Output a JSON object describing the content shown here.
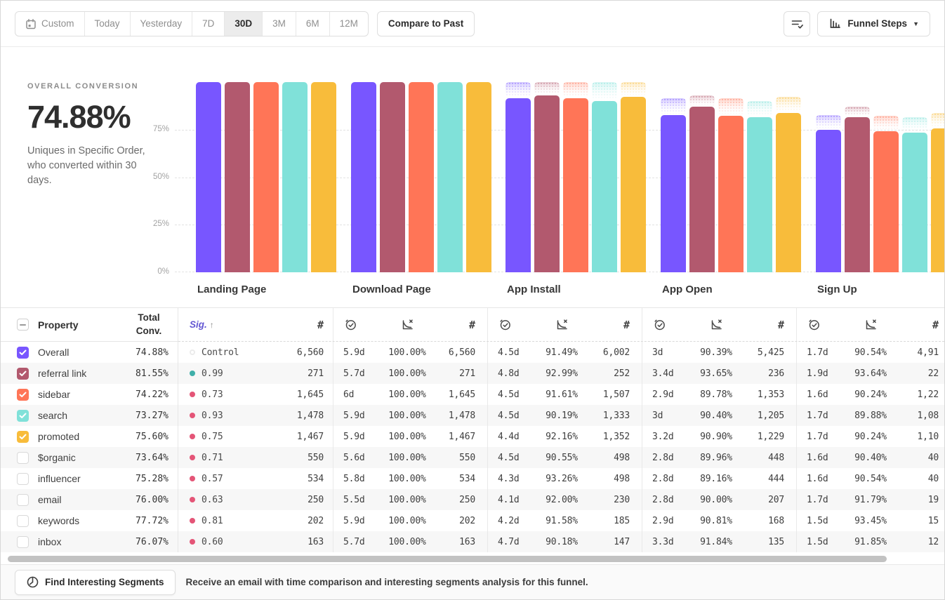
{
  "toolbar": {
    "date_ranges": [
      "Custom",
      "Today",
      "Yesterday",
      "7D",
      "30D",
      "3M",
      "6M",
      "12M"
    ],
    "active_range": "30D",
    "compare_label": "Compare to Past",
    "view_selector_label": "Funnel Steps"
  },
  "overview": {
    "label": "OVERALL CONVERSION",
    "value": "74.88%",
    "description": "Uniques in Specific Order, who converted within 30 days."
  },
  "chart_data": {
    "type": "bar",
    "categories": [
      "Landing Page",
      "Download Page",
      "App Install",
      "App Open",
      "Sign Up"
    ],
    "y_ticks": [
      "75%",
      "50%",
      "25%",
      "0%"
    ],
    "ylim": [
      0,
      100
    ],
    "grid": "dashed-horizontal",
    "legend_position": "none",
    "series": [
      {
        "name": "Overall",
        "color": "#7856FF",
        "cumulative_pct": [
          100,
          100,
          91.49,
          82.7,
          74.88
        ]
      },
      {
        "name": "referral link",
        "color": "#B2596E",
        "cumulative_pct": [
          100,
          100,
          92.99,
          87.08,
          81.55
        ]
      },
      {
        "name": "sidebar",
        "color": "#FF7557",
        "cumulative_pct": [
          100,
          100,
          91.61,
          82.25,
          74.22
        ]
      },
      {
        "name": "search",
        "color": "#80E1D9",
        "cumulative_pct": [
          100,
          100,
          90.19,
          81.53,
          73.27
        ]
      },
      {
        "name": "promoted",
        "color": "#F8BC3B",
        "cumulative_pct": [
          100,
          100,
          92.16,
          83.77,
          75.6
        ]
      }
    ]
  },
  "table": {
    "header": {
      "property": "Property",
      "total": "Total Conv.",
      "sig": "Sig.",
      "sort_arrow": "↑",
      "count_symbol": "#"
    },
    "step_metric_icons": [
      "stopwatch-icon",
      "conversion-chart-icon",
      "count-hash"
    ],
    "rows": [
      {
        "property": "Overall",
        "total": "74.88%",
        "checked": true,
        "color": "#7856FF",
        "sig": {
          "type": "control",
          "value": "Control"
        },
        "entry_count": "6,560",
        "steps": [
          {
            "time": "5.9d",
            "rate": "100.00%",
            "count": "6,560"
          },
          {
            "time": "4.5d",
            "rate": "91.49%",
            "count": "6,002"
          },
          {
            "time": "3d",
            "rate": "90.39%",
            "count": "5,425"
          },
          {
            "time": "1.7d",
            "rate": "90.54%",
            "count": "4,91"
          }
        ]
      },
      {
        "property": "referral link",
        "total": "81.55%",
        "checked": true,
        "color": "#B2596E",
        "sig": {
          "type": "positive",
          "value": "0.99"
        },
        "entry_count": "271",
        "steps": [
          {
            "time": "5.7d",
            "rate": "100.00%",
            "count": "271"
          },
          {
            "time": "4.8d",
            "rate": "92.99%",
            "count": "252"
          },
          {
            "time": "3.4d",
            "rate": "93.65%",
            "count": "236"
          },
          {
            "time": "1.9d",
            "rate": "93.64%",
            "count": "22"
          }
        ]
      },
      {
        "property": "sidebar",
        "total": "74.22%",
        "checked": true,
        "color": "#FF7557",
        "sig": {
          "type": "negative",
          "value": "0.73"
        },
        "entry_count": "1,645",
        "steps": [
          {
            "time": "6d",
            "rate": "100.00%",
            "count": "1,645"
          },
          {
            "time": "4.5d",
            "rate": "91.61%",
            "count": "1,507"
          },
          {
            "time": "2.9d",
            "rate": "89.78%",
            "count": "1,353"
          },
          {
            "time": "1.6d",
            "rate": "90.24%",
            "count": "1,22"
          }
        ]
      },
      {
        "property": "search",
        "total": "73.27%",
        "checked": true,
        "color": "#80E1D9",
        "sig": {
          "type": "negative",
          "value": "0.93"
        },
        "entry_count": "1,478",
        "steps": [
          {
            "time": "5.9d",
            "rate": "100.00%",
            "count": "1,478"
          },
          {
            "time": "4.5d",
            "rate": "90.19%",
            "count": "1,333"
          },
          {
            "time": "3d",
            "rate": "90.40%",
            "count": "1,205"
          },
          {
            "time": "1.7d",
            "rate": "89.88%",
            "count": "1,08"
          }
        ]
      },
      {
        "property": "promoted",
        "total": "75.60%",
        "checked": true,
        "color": "#F8BC3B",
        "sig": {
          "type": "negative",
          "value": "0.75"
        },
        "entry_count": "1,467",
        "steps": [
          {
            "time": "5.9d",
            "rate": "100.00%",
            "count": "1,467"
          },
          {
            "time": "4.4d",
            "rate": "92.16%",
            "count": "1,352"
          },
          {
            "time": "3.2d",
            "rate": "90.90%",
            "count": "1,229"
          },
          {
            "time": "1.7d",
            "rate": "90.24%",
            "count": "1,10"
          }
        ]
      },
      {
        "property": "$organic",
        "total": "73.64%",
        "checked": false,
        "color": null,
        "sig": {
          "type": "negative",
          "value": "0.71"
        },
        "entry_count": "550",
        "steps": [
          {
            "time": "5.6d",
            "rate": "100.00%",
            "count": "550"
          },
          {
            "time": "4.5d",
            "rate": "90.55%",
            "count": "498"
          },
          {
            "time": "2.8d",
            "rate": "89.96%",
            "count": "448"
          },
          {
            "time": "1.6d",
            "rate": "90.40%",
            "count": "40"
          }
        ]
      },
      {
        "property": "influencer",
        "total": "75.28%",
        "checked": false,
        "color": null,
        "sig": {
          "type": "negative",
          "value": "0.57"
        },
        "entry_count": "534",
        "steps": [
          {
            "time": "5.8d",
            "rate": "100.00%",
            "count": "534"
          },
          {
            "time": "4.3d",
            "rate": "93.26%",
            "count": "498"
          },
          {
            "time": "2.8d",
            "rate": "89.16%",
            "count": "444"
          },
          {
            "time": "1.6d",
            "rate": "90.54%",
            "count": "40"
          }
        ]
      },
      {
        "property": "email",
        "total": "76.00%",
        "checked": false,
        "color": null,
        "sig": {
          "type": "negative",
          "value": "0.63"
        },
        "entry_count": "250",
        "steps": [
          {
            "time": "5.5d",
            "rate": "100.00%",
            "count": "250"
          },
          {
            "time": "4.1d",
            "rate": "92.00%",
            "count": "230"
          },
          {
            "time": "2.8d",
            "rate": "90.00%",
            "count": "207"
          },
          {
            "time": "1.7d",
            "rate": "91.79%",
            "count": "19"
          }
        ]
      },
      {
        "property": "keywords",
        "total": "77.72%",
        "checked": false,
        "color": null,
        "sig": {
          "type": "negative",
          "value": "0.81"
        },
        "entry_count": "202",
        "steps": [
          {
            "time": "5.9d",
            "rate": "100.00%",
            "count": "202"
          },
          {
            "time": "4.2d",
            "rate": "91.58%",
            "count": "185"
          },
          {
            "time": "2.9d",
            "rate": "90.81%",
            "count": "168"
          },
          {
            "time": "1.5d",
            "rate": "93.45%",
            "count": "15"
          }
        ]
      },
      {
        "property": "inbox",
        "total": "76.07%",
        "checked": false,
        "color": null,
        "sig": {
          "type": "negative",
          "value": "0.60"
        },
        "entry_count": "163",
        "steps": [
          {
            "time": "5.7d",
            "rate": "100.00%",
            "count": "163"
          },
          {
            "time": "4.7d",
            "rate": "90.18%",
            "count": "147"
          },
          {
            "time": "3.3d",
            "rate": "91.84%",
            "count": "135"
          },
          {
            "time": "1.5d",
            "rate": "91.85%",
            "count": "12"
          }
        ]
      }
    ]
  },
  "footer": {
    "button_label": "Find Interesting Segments",
    "message": "Receive an email with time comparison and interesting segments analysis for this funnel."
  },
  "colors": {
    "accent_purple": "#6356d2",
    "sig_positive_dot": "#3FAFA9",
    "sig_negative_dot": "#E45577",
    "sig_control_ring": "#EBEBEB",
    "row_shade": "#F7F7F7"
  }
}
